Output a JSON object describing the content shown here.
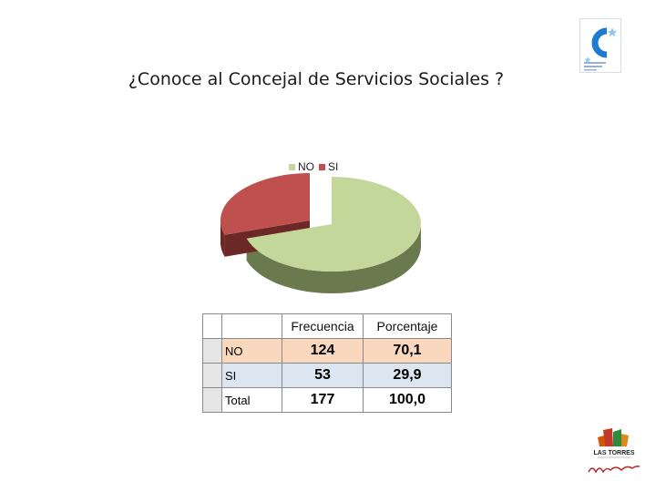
{
  "title": "¿Conoce al Concejal de Servicios Sociales ?",
  "colors": {
    "no_top": "#c4d79b",
    "no_side": "#6b7a4e",
    "si_top": "#c0504d",
    "si_side": "#6b2826"
  },
  "chart_data": {
    "type": "pie",
    "title": "¿Conoce al Concejal de Servicios Sociales ?",
    "categories": [
      "NO",
      "SI"
    ],
    "values": [
      70.1,
      29.9
    ],
    "legend": {
      "placement": "top",
      "entries": [
        "NO",
        "SI"
      ]
    }
  },
  "table": {
    "headers": [
      "",
      "Frecuencia",
      "Porcentaje"
    ],
    "rows": [
      {
        "label": "NO",
        "frecuencia": "124",
        "porcentaje": "70,1"
      },
      {
        "label": "SI",
        "frecuencia": "53",
        "porcentaje": "29,9"
      },
      {
        "label": "Total",
        "frecuencia": "177",
        "porcentaje": "100,0"
      }
    ]
  },
  "logos": {
    "top": {
      "icon": "party-logo-c-icon",
      "text": ""
    },
    "bottom": {
      "icon": "las-torres-logo-icon",
      "text": "LAS TORRES"
    }
  }
}
